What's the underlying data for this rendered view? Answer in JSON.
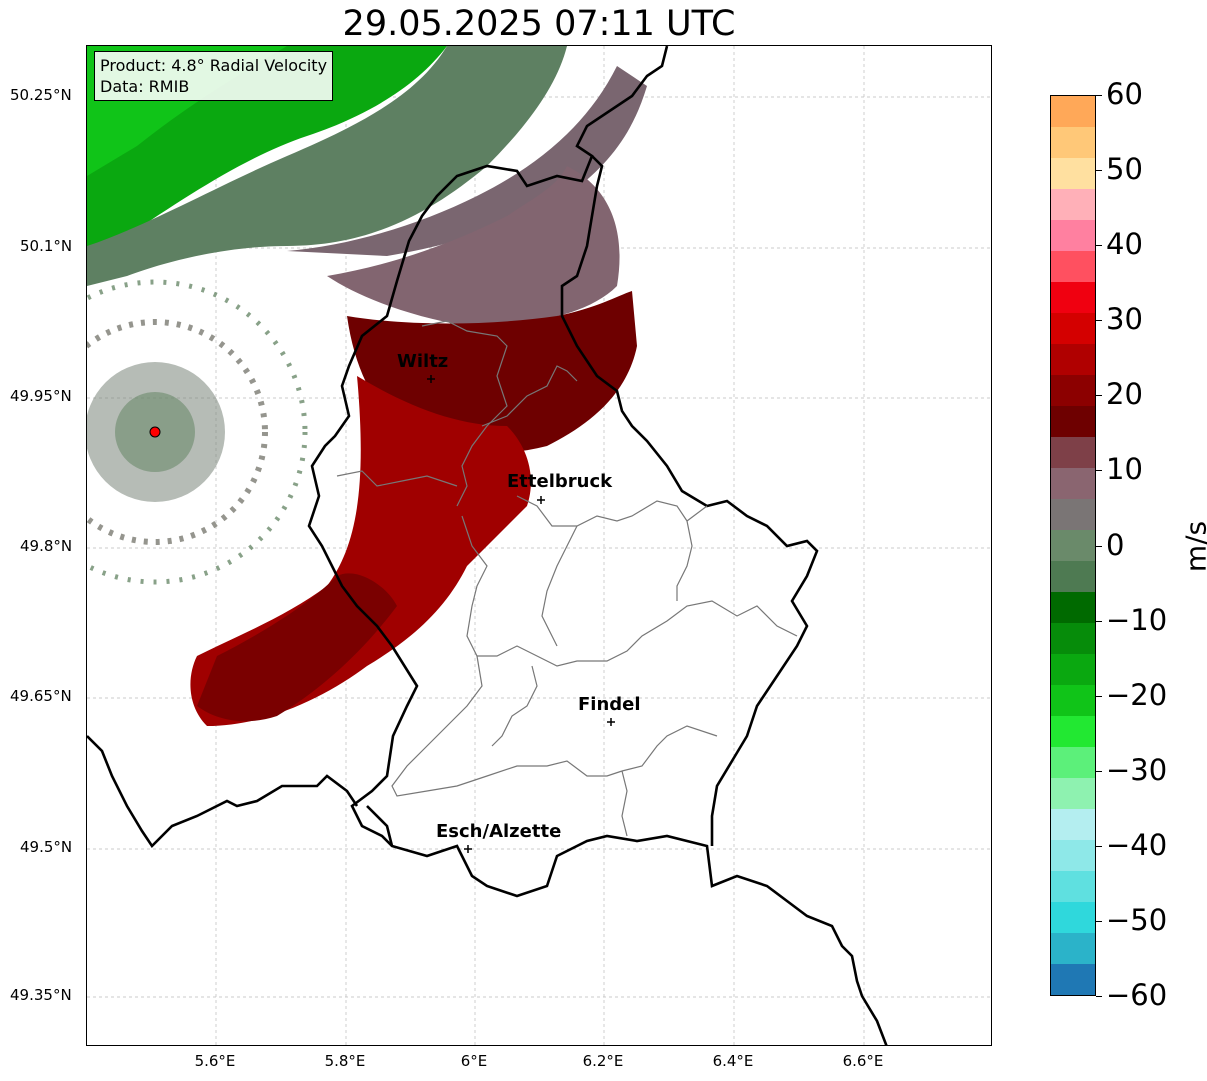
{
  "title": "29.05.2025 07:11 UTC",
  "info": {
    "product": "Product: 4.8° Radial Velocity",
    "data": "Data: RMIB"
  },
  "lat_labels": [
    "50.25°N",
    "50.1°N",
    "49.95°N",
    "49.8°N",
    "49.65°N",
    "49.5°N",
    "49.35°N"
  ],
  "lon_labels": [
    "5.6°E",
    "5.8°E",
    "6°E",
    "6.2°E",
    "6.4°E",
    "6.6°E"
  ],
  "cities": {
    "wiltz": "Wiltz",
    "ettelbruck": "Ettelbruck",
    "findel": "Findel",
    "esch": "Esch/Alzette"
  },
  "colorbar": {
    "unit": "m/s",
    "ticks": [
      "60",
      "50",
      "40",
      "30",
      "20",
      "10",
      "0",
      "−10",
      "−20",
      "−30",
      "−40",
      "−50",
      "−60"
    ],
    "min": -60,
    "max": 60,
    "colors": [
      "#1f78b4",
      "#2bb3c9",
      "#2fd8dc",
      "#5fe0e0",
      "#8ee8e8",
      "#b4eef0",
      "#8ef2b0",
      "#5cf07a",
      "#22e832",
      "#10c418",
      "#0aa810",
      "#068c0a",
      "#006a00",
      "#4e7a52",
      "#6a8a6a",
      "#7a7575",
      "#8a6570",
      "#7e4048",
      "#6e0000",
      "#8c0000",
      "#b00000",
      "#d40000",
      "#f00010",
      "#ff5060",
      "#ff80a0",
      "#ffb0b8",
      "#ffe0a0",
      "#ffc878",
      "#ffa858"
    ]
  },
  "radar_site": "radar-location"
}
